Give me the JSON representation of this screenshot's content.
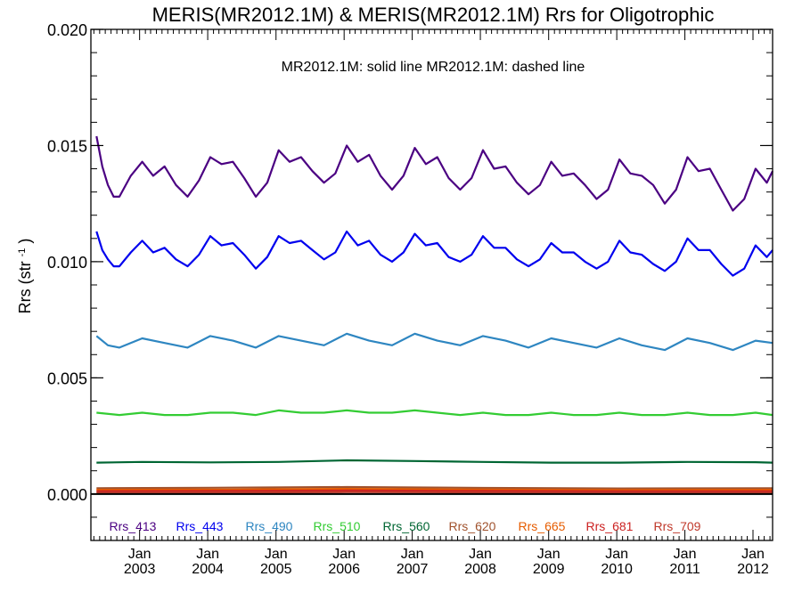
{
  "chart_data": {
    "type": "line",
    "title": "MERIS(MR2012.1M) & MERIS(MR2012.1M)  Rrs for Oligotrophic",
    "subtitle_solid": "MR2012.1M: solid line",
    "subtitle_dashed": "MR2012.1M: dashed line",
    "ylabel_main": "Rrs (str",
    "ylabel_exp": "-1",
    "ylabel_close": ")",
    "ylim": [
      -0.002,
      0.02
    ],
    "y_ticks": [
      0.0,
      0.005,
      0.01,
      0.015,
      0.02
    ],
    "y_tick_labels": [
      "0.000",
      "0.005",
      "0.010",
      "0.015",
      "0.020"
    ],
    "xlim": [
      "2002-04-15",
      "2012-04-15"
    ],
    "x_tick_month": "Jan",
    "x_ticks": [
      {
        "date": "2003-01-01",
        "year": "2003"
      },
      {
        "date": "2004-01-01",
        "year": "2004"
      },
      {
        "date": "2005-01-01",
        "year": "2005"
      },
      {
        "date": "2006-01-01",
        "year": "2006"
      },
      {
        "date": "2007-01-01",
        "year": "2007"
      },
      {
        "date": "2008-01-01",
        "year": "2008"
      },
      {
        "date": "2009-01-01",
        "year": "2009"
      },
      {
        "date": "2010-01-01",
        "year": "2010"
      },
      {
        "date": "2011-01-01",
        "year": "2011"
      },
      {
        "date": "2012-01-01",
        "year": "2012"
      }
    ],
    "grid": false,
    "legend_position": "bottom",
    "zero_line": true,
    "series": [
      {
        "name": "Rrs_413",
        "color": "#4b0082",
        "x": [
          "2002-05",
          "2002-06",
          "2002-07",
          "2002-08",
          "2002-09",
          "2002-11",
          "2003-01",
          "2003-03",
          "2003-05",
          "2003-07",
          "2003-09",
          "2003-11",
          "2004-01",
          "2004-03",
          "2004-05",
          "2004-07",
          "2004-09",
          "2004-11",
          "2005-01",
          "2005-03",
          "2005-05",
          "2005-07",
          "2005-09",
          "2005-11",
          "2006-01",
          "2006-03",
          "2006-05",
          "2006-07",
          "2006-09",
          "2006-11",
          "2007-01",
          "2007-03",
          "2007-05",
          "2007-07",
          "2007-09",
          "2007-11",
          "2008-01",
          "2008-03",
          "2008-05",
          "2008-07",
          "2008-09",
          "2008-11",
          "2009-01",
          "2009-03",
          "2009-05",
          "2009-07",
          "2009-09",
          "2009-11",
          "2010-01",
          "2010-03",
          "2010-05",
          "2010-07",
          "2010-09",
          "2010-11",
          "2011-01",
          "2011-03",
          "2011-05",
          "2011-07",
          "2011-09",
          "2011-11",
          "2012-01",
          "2012-03",
          "2012-04"
        ],
        "values": [
          0.0154,
          0.0141,
          0.0133,
          0.0128,
          0.0128,
          0.0137,
          0.0143,
          0.0137,
          0.0141,
          0.0133,
          0.0128,
          0.0135,
          0.0145,
          0.0142,
          0.0143,
          0.0136,
          0.0128,
          0.0134,
          0.0148,
          0.0143,
          0.0145,
          0.0139,
          0.0134,
          0.0138,
          0.015,
          0.0143,
          0.0146,
          0.0137,
          0.0131,
          0.0137,
          0.0149,
          0.0142,
          0.0145,
          0.0136,
          0.0131,
          0.0136,
          0.0148,
          0.014,
          0.0141,
          0.0134,
          0.0129,
          0.0133,
          0.0143,
          0.0137,
          0.0138,
          0.0133,
          0.0127,
          0.0131,
          0.0144,
          0.0138,
          0.0137,
          0.0133,
          0.0125,
          0.0131,
          0.0145,
          0.0139,
          0.014,
          0.0131,
          0.0122,
          0.0127,
          0.014,
          0.0134,
          0.0139
        ]
      },
      {
        "name": "Rrs_443",
        "color": "#0000ee",
        "x": [
          "2002-05",
          "2002-06",
          "2002-07",
          "2002-08",
          "2002-09",
          "2002-11",
          "2003-01",
          "2003-03",
          "2003-05",
          "2003-07",
          "2003-09",
          "2003-11",
          "2004-01",
          "2004-03",
          "2004-05",
          "2004-07",
          "2004-09",
          "2004-11",
          "2005-01",
          "2005-03",
          "2005-05",
          "2005-07",
          "2005-09",
          "2005-11",
          "2006-01",
          "2006-03",
          "2006-05",
          "2006-07",
          "2006-09",
          "2006-11",
          "2007-01",
          "2007-03",
          "2007-05",
          "2007-07",
          "2007-09",
          "2007-11",
          "2008-01",
          "2008-03",
          "2008-05",
          "2008-07",
          "2008-09",
          "2008-11",
          "2009-01",
          "2009-03",
          "2009-05",
          "2009-07",
          "2009-09",
          "2009-11",
          "2010-01",
          "2010-03",
          "2010-05",
          "2010-07",
          "2010-09",
          "2010-11",
          "2011-01",
          "2011-03",
          "2011-05",
          "2011-07",
          "2011-09",
          "2011-11",
          "2012-01",
          "2012-03",
          "2012-04"
        ],
        "values": [
          0.0113,
          0.0105,
          0.0101,
          0.0098,
          0.0098,
          0.0104,
          0.0109,
          0.0104,
          0.0106,
          0.0101,
          0.0098,
          0.0103,
          0.0111,
          0.0107,
          0.0108,
          0.0103,
          0.0097,
          0.0102,
          0.0111,
          0.0108,
          0.0109,
          0.0105,
          0.0101,
          0.0104,
          0.0113,
          0.0107,
          0.0109,
          0.0103,
          0.01,
          0.0104,
          0.0112,
          0.0107,
          0.0108,
          0.0102,
          0.01,
          0.0103,
          0.0111,
          0.0106,
          0.0106,
          0.0101,
          0.0098,
          0.0101,
          0.0108,
          0.0104,
          0.0104,
          0.01,
          0.0097,
          0.01,
          0.0109,
          0.0104,
          0.0103,
          0.0099,
          0.0096,
          0.01,
          0.011,
          0.0105,
          0.0105,
          0.0099,
          0.0094,
          0.0097,
          0.0107,
          0.0102,
          0.0105
        ]
      },
      {
        "name": "Rrs_490",
        "color": "#2e86c1",
        "x": [
          "2002-05",
          "2002-07",
          "2002-09",
          "2003-01",
          "2003-05",
          "2003-09",
          "2004-01",
          "2004-05",
          "2004-09",
          "2005-01",
          "2005-05",
          "2005-09",
          "2006-01",
          "2006-05",
          "2006-09",
          "2007-01",
          "2007-05",
          "2007-09",
          "2008-01",
          "2008-05",
          "2008-09",
          "2009-01",
          "2009-05",
          "2009-09",
          "2010-01",
          "2010-05",
          "2010-09",
          "2011-01",
          "2011-05",
          "2011-09",
          "2012-01",
          "2012-04"
        ],
        "values": [
          0.0068,
          0.0064,
          0.0063,
          0.0067,
          0.0065,
          0.0063,
          0.0068,
          0.0066,
          0.0063,
          0.0068,
          0.0066,
          0.0064,
          0.0069,
          0.0066,
          0.0064,
          0.0069,
          0.0066,
          0.0064,
          0.0068,
          0.0066,
          0.0063,
          0.0067,
          0.0065,
          0.0063,
          0.0067,
          0.0064,
          0.0062,
          0.0067,
          0.0065,
          0.0062,
          0.0066,
          0.0065
        ]
      },
      {
        "name": "Rrs_510",
        "color": "#33cc33",
        "x": [
          "2002-05",
          "2002-09",
          "2003-01",
          "2003-05",
          "2003-09",
          "2004-01",
          "2004-05",
          "2004-09",
          "2005-01",
          "2005-05",
          "2005-09",
          "2006-01",
          "2006-05",
          "2006-09",
          "2007-01",
          "2007-05",
          "2007-09",
          "2008-01",
          "2008-05",
          "2008-09",
          "2009-01",
          "2009-05",
          "2009-09",
          "2010-01",
          "2010-05",
          "2010-09",
          "2011-01",
          "2011-05",
          "2011-09",
          "2012-01",
          "2012-04"
        ],
        "values": [
          0.0035,
          0.0034,
          0.0035,
          0.0034,
          0.0034,
          0.0035,
          0.0035,
          0.0034,
          0.0036,
          0.0035,
          0.0035,
          0.0036,
          0.0035,
          0.0035,
          0.0036,
          0.0035,
          0.0034,
          0.0035,
          0.0034,
          0.0034,
          0.0035,
          0.0034,
          0.0034,
          0.0035,
          0.0034,
          0.0034,
          0.0035,
          0.0034,
          0.0034,
          0.0035,
          0.0034
        ]
      },
      {
        "name": "Rrs_560",
        "color": "#006633",
        "x": [
          "2002-05",
          "2003-01",
          "2004-01",
          "2005-01",
          "2006-01",
          "2007-01",
          "2008-01",
          "2009-01",
          "2010-01",
          "2011-01",
          "2012-01",
          "2012-04"
        ],
        "values": [
          0.00135,
          0.00138,
          0.00136,
          0.00138,
          0.00145,
          0.00142,
          0.00138,
          0.00135,
          0.00135,
          0.00138,
          0.00137,
          0.00135
        ]
      },
      {
        "name": "Rrs_620",
        "color": "#a0522d",
        "x": [
          "2002-05",
          "2004-01",
          "2006-01",
          "2008-01",
          "2010-01",
          "2012-04"
        ],
        "values": [
          0.00025,
          0.00027,
          0.0003,
          0.00026,
          0.00024,
          0.00025
        ]
      },
      {
        "name": "Rrs_665",
        "color": "#e65c00",
        "x": [
          "2002-05",
          "2004-01",
          "2006-01",
          "2008-01",
          "2010-01",
          "2012-04"
        ],
        "values": [
          0.00018,
          0.00019,
          0.00022,
          0.00019,
          0.00017,
          0.00018
        ]
      },
      {
        "name": "Rrs_681",
        "color": "#cc2222",
        "x": [
          "2002-05",
          "2004-01",
          "2006-01",
          "2008-01",
          "2010-01",
          "2012-04"
        ],
        "values": [
          0.00012,
          0.00013,
          0.00015,
          0.00013,
          0.00012,
          0.00012
        ]
      },
      {
        "name": "Rrs_709",
        "color": "#c0392b",
        "x": [
          "2002-05",
          "2004-01",
          "2006-01",
          "2008-01",
          "2010-01",
          "2012-04"
        ],
        "values": [
          6e-05,
          7e-05,
          8e-05,
          7e-05,
          6e-05,
          6e-05
        ]
      }
    ]
  }
}
